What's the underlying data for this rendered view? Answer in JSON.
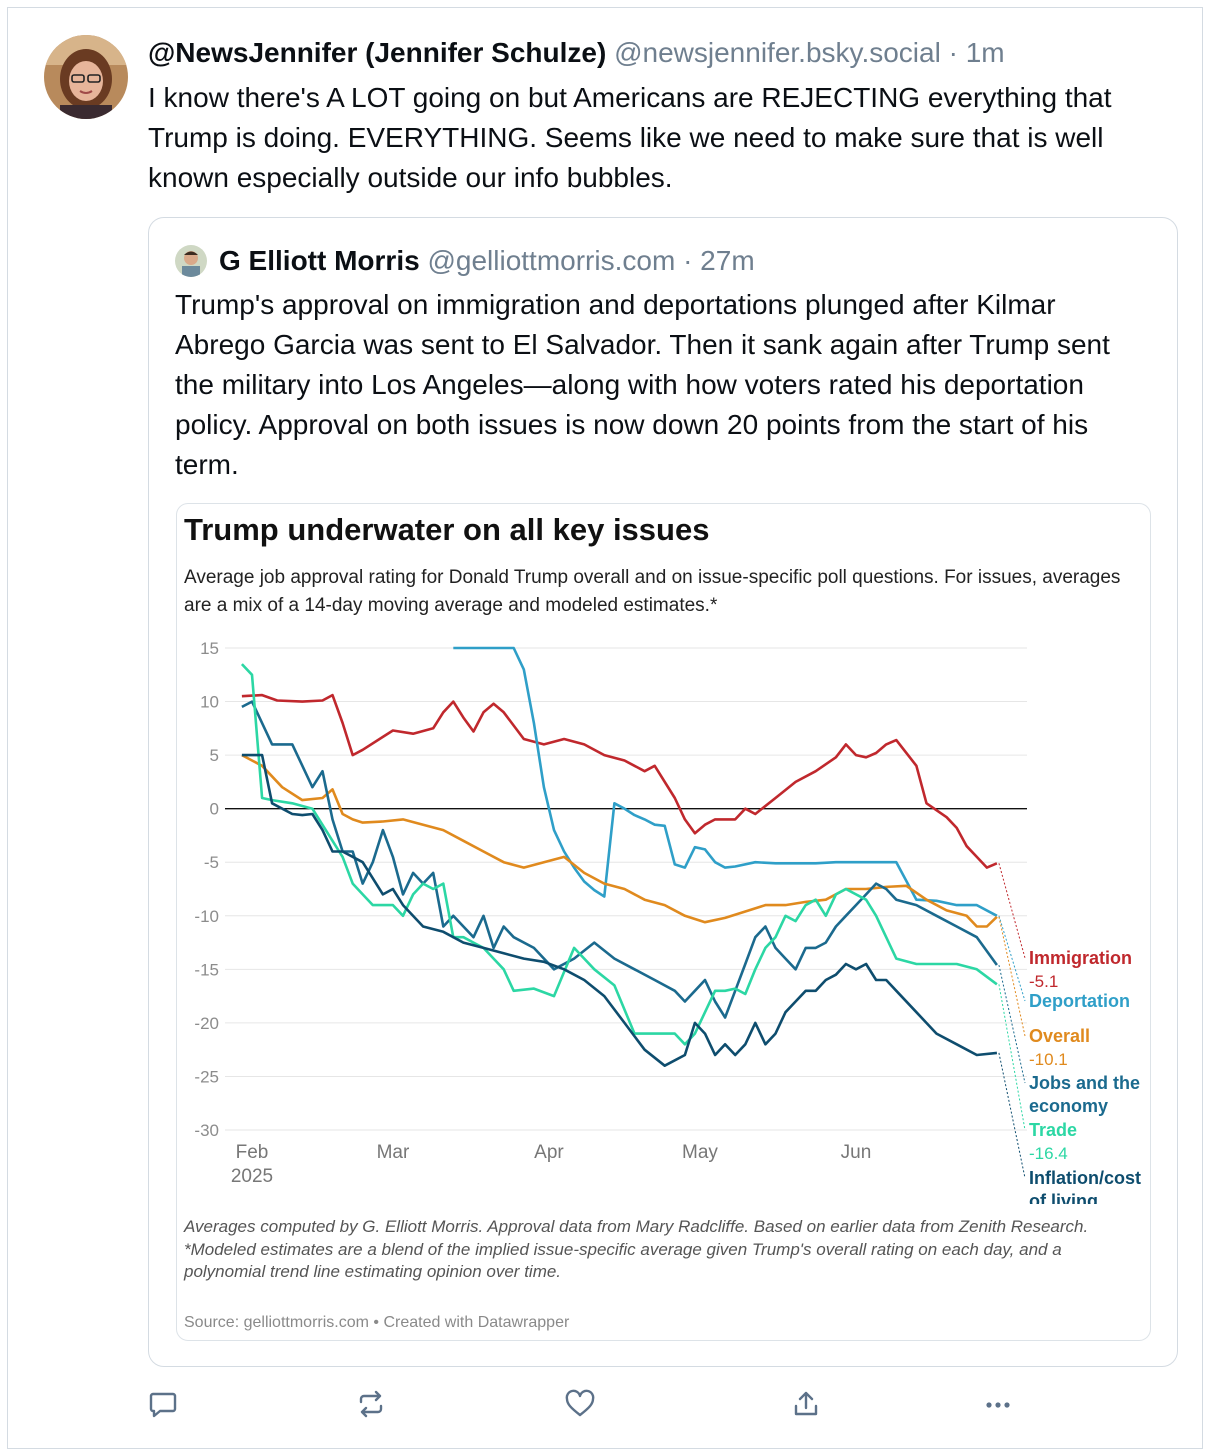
{
  "post": {
    "author_name": "@NewsJennifer (Jennifer Schulze)",
    "handle": "@newsjennifer.bsky.social",
    "separator": "·",
    "time": "1m",
    "text": "I know there's A LOT going on but Americans are REJECTING everything that Trump is doing. EVERYTHING.  Seems like we need to make sure that is well known especially outside our info bubbles."
  },
  "quote": {
    "author_name": "G Elliott Morris",
    "handle": "@gelliottmorris.com",
    "separator": "·",
    "time": "27m",
    "text": "Trump's approval on immigration and deportations plunged after Kilmar Abrego Garcia was sent to El Salvador. Then it sank again after Trump sent the military into Los Angeles—along with how voters rated his deportation policy. Approval on both issues is now down 20 points from the start of his term."
  },
  "chart_text": {
    "notes1": "Averages computed by G. Elliott Morris. Approval data from Mary Radcliffe. Based on earlier data from Zenith Research.",
    "notes2": "*Modeled estimates are a blend of the implied issue-specific average given Trump's overall rating on each day, and a polynomial trend line estimating opinion over time.",
    "source": "Source: gelliottmorris.com • Created with Datawrapper"
  },
  "chart_data": {
    "type": "line",
    "title": "Trump underwater on all key issues",
    "subtitle": "Average job approval rating for Donald Trump overall and on issue-specific poll questions. For issues, averages are a mix of a 14-day moving average and modeled estimates.*",
    "xlabel": "",
    "ylabel": "",
    "ylim": [
      -30,
      15
    ],
    "yticks": [
      15,
      10,
      5,
      0,
      -5,
      -10,
      -15,
      -20,
      -25,
      -30
    ],
    "xlim": [
      0,
      150
    ],
    "xticks": [
      {
        "day": 0,
        "label": "Feb",
        "sublabel": "2025"
      },
      {
        "day": 28,
        "label": "Mar"
      },
      {
        "day": 59,
        "label": "Apr"
      },
      {
        "day": 89,
        "label": "May"
      },
      {
        "day": 120,
        "label": "Jun"
      }
    ],
    "series": [
      {
        "name": "Immigration",
        "color": "#c0282d",
        "label_value": "-5.1",
        "x": [
          -2,
          2,
          5,
          10,
          14,
          16,
          18,
          20,
          22,
          28,
          32,
          36,
          38,
          40,
          42,
          44,
          46,
          48,
          50,
          54,
          58,
          62,
          66,
          70,
          74,
          78,
          80,
          84,
          86,
          88,
          90,
          92,
          96,
          98,
          100,
          104,
          108,
          112,
          116,
          118,
          120,
          122,
          124,
          126,
          128,
          132,
          134,
          138,
          140,
          142,
          144,
          146,
          148
        ],
        "y": [
          10.5,
          10.6,
          10.1,
          10,
          10.1,
          10.6,
          8,
          5,
          5.5,
          7.3,
          7,
          7.5,
          9,
          10,
          8.5,
          7.2,
          9,
          9.8,
          9,
          6.5,
          6,
          6.5,
          6,
          5,
          4.5,
          3.5,
          4,
          1,
          -1,
          -2.3,
          -1.5,
          -1,
          -1,
          0,
          -0.5,
          1,
          2.5,
          3.5,
          4.8,
          6,
          5,
          4.8,
          5.2,
          6,
          6.4,
          4,
          0.5,
          -0.8,
          -1.8,
          -3.5,
          -4.5,
          -5.5,
          -5.1
        ]
      },
      {
        "name": "Deportation",
        "color": "#2f9fc8",
        "label_value": "",
        "x": [
          40,
          50,
          52,
          54,
          56,
          58,
          60,
          62,
          64,
          66,
          68,
          70,
          72,
          74,
          76,
          78,
          80,
          82,
          84,
          86,
          88,
          90,
          92,
          94,
          96,
          100,
          104,
          108,
          112,
          116,
          120,
          124,
          128,
          132,
          136,
          140,
          144,
          148
        ],
        "y": [
          15,
          15,
          15,
          13,
          8,
          2,
          -2,
          -4,
          -5.5,
          -6.8,
          -7.6,
          -8.2,
          0.5,
          0,
          -0.6,
          -1,
          -1.5,
          -1.6,
          -5.2,
          -5.5,
          -3.6,
          -3.8,
          -5,
          -5.5,
          -5.4,
          -5,
          -5.1,
          -5.1,
          -5.1,
          -5,
          -5,
          -5,
          -5,
          -8.5,
          -8.6,
          -9,
          -9,
          -10
        ]
      },
      {
        "name": "Overall",
        "color": "#e08a1e",
        "label_value": "-10.1",
        "x": [
          -2,
          2,
          6,
          10,
          14,
          16,
          18,
          20,
          22,
          26,
          30,
          34,
          38,
          42,
          46,
          50,
          54,
          58,
          62,
          66,
          70,
          74,
          78,
          82,
          86,
          90,
          94,
          98,
          102,
          106,
          110,
          114,
          118,
          122,
          126,
          130,
          134,
          138,
          142,
          144,
          146,
          148
        ],
        "y": [
          5,
          4,
          2,
          0.8,
          1,
          1.8,
          -0.5,
          -1,
          -1.3,
          -1.2,
          -1,
          -1.5,
          -2,
          -3,
          -4,
          -5,
          -5.5,
          -5,
          -4.5,
          -6,
          -7,
          -7.5,
          -8.5,
          -9,
          -10,
          -10.6,
          -10.2,
          -9.6,
          -9,
          -9,
          -8.7,
          -8.5,
          -7.5,
          -7.5,
          -7.3,
          -7.2,
          -8.5,
          -9.5,
          -10,
          -11,
          -11,
          -10.1
        ]
      },
      {
        "name": "Jobs and the economy",
        "color": "#1b6a8e",
        "label_value": "",
        "x": [
          -2,
          0,
          4,
          8,
          12,
          14,
          16,
          18,
          20,
          22,
          24,
          26,
          28,
          30,
          32,
          34,
          36,
          38,
          40,
          42,
          44,
          46,
          48,
          50,
          52,
          56,
          60,
          64,
          68,
          72,
          76,
          80,
          84,
          86,
          88,
          90,
          92,
          94,
          96,
          98,
          100,
          102,
          104,
          106,
          108,
          110,
          112,
          114,
          116,
          118,
          120,
          122,
          124,
          126,
          128,
          132,
          136,
          140,
          144,
          148
        ],
        "y": [
          9.5,
          10,
          6,
          6,
          2,
          3.5,
          -1,
          -4,
          -4,
          -7,
          -5,
          -2,
          -4.5,
          -8,
          -6,
          -7,
          -6,
          -11,
          -10,
          -11,
          -12,
          -10,
          -13,
          -11,
          -12,
          -13,
          -15,
          -14,
          -12.5,
          -14,
          -15,
          -16,
          -17,
          -18,
          -17,
          -16,
          -18,
          -19.5,
          -17,
          -14.5,
          -12,
          -11,
          -13,
          -14,
          -15,
          -13,
          -13,
          -12.5,
          -11,
          -10,
          -9,
          -8,
          -7,
          -7.5,
          -8.5,
          -9,
          -10,
          -11,
          -12,
          -14.6
        ]
      },
      {
        "name": "Trade",
        "color": "#2cd7a4",
        "label_value": "-16.4",
        "x": [
          -2,
          0,
          2,
          4,
          8,
          12,
          16,
          18,
          20,
          22,
          24,
          26,
          28,
          30,
          32,
          34,
          36,
          38,
          40,
          42,
          44,
          46,
          48,
          50,
          52,
          56,
          60,
          64,
          68,
          72,
          76,
          80,
          84,
          86,
          88,
          90,
          92,
          94,
          96,
          98,
          100,
          102,
          104,
          106,
          108,
          110,
          112,
          114,
          116,
          118,
          120,
          122,
          124,
          126,
          128,
          132,
          136,
          140,
          144,
          148
        ],
        "y": [
          13.5,
          12.5,
          1,
          0.8,
          0.5,
          0,
          -3,
          -4.5,
          -7,
          -8,
          -9,
          -9,
          -9,
          -10,
          -8,
          -7,
          -7.5,
          -7,
          -12,
          -12,
          -12.5,
          -13,
          -14,
          -15,
          -17,
          -16.8,
          -17.5,
          -13,
          -15,
          -16.5,
          -21,
          -21,
          -21,
          -22,
          -21,
          -19,
          -17,
          -17,
          -16.8,
          -17.3,
          -15,
          -13,
          -12,
          -10,
          -10.5,
          -9,
          -8.5,
          -10,
          -8,
          -7.5,
          -8,
          -8.5,
          -10,
          -12,
          -14,
          -14.5,
          -14.5,
          -14.5,
          -15,
          -16.4
        ]
      },
      {
        "name": "Inflation/cost of living",
        "color": "#0e4d6e",
        "label_value": "",
        "x": [
          -2,
          2,
          4,
          8,
          10,
          12,
          14,
          16,
          18,
          22,
          26,
          28,
          30,
          34,
          38,
          42,
          46,
          50,
          54,
          58,
          62,
          66,
          70,
          74,
          78,
          82,
          86,
          88,
          90,
          92,
          94,
          96,
          98,
          100,
          102,
          104,
          106,
          108,
          110,
          112,
          114,
          116,
          118,
          120,
          122,
          124,
          126,
          128,
          132,
          136,
          140,
          144,
          148
        ],
        "y": [
          5,
          5,
          0.5,
          -0.5,
          -0.6,
          -0.5,
          -2,
          -4,
          -4,
          -5,
          -8,
          -7.5,
          -9,
          -11,
          -11.5,
          -12.5,
          -13,
          -13.5,
          -14,
          -14.3,
          -15,
          -16,
          -17.5,
          -20,
          -22.5,
          -24,
          -23,
          -20,
          -21,
          -23,
          -22,
          -23,
          -22,
          -20,
          -22,
          -21,
          -19,
          -18,
          -17,
          -17,
          -16,
          -15.5,
          -14.5,
          -15,
          -14.5,
          -16,
          -16,
          -17,
          -19,
          -21,
          -22,
          -23,
          -22.8
        ]
      }
    ]
  }
}
